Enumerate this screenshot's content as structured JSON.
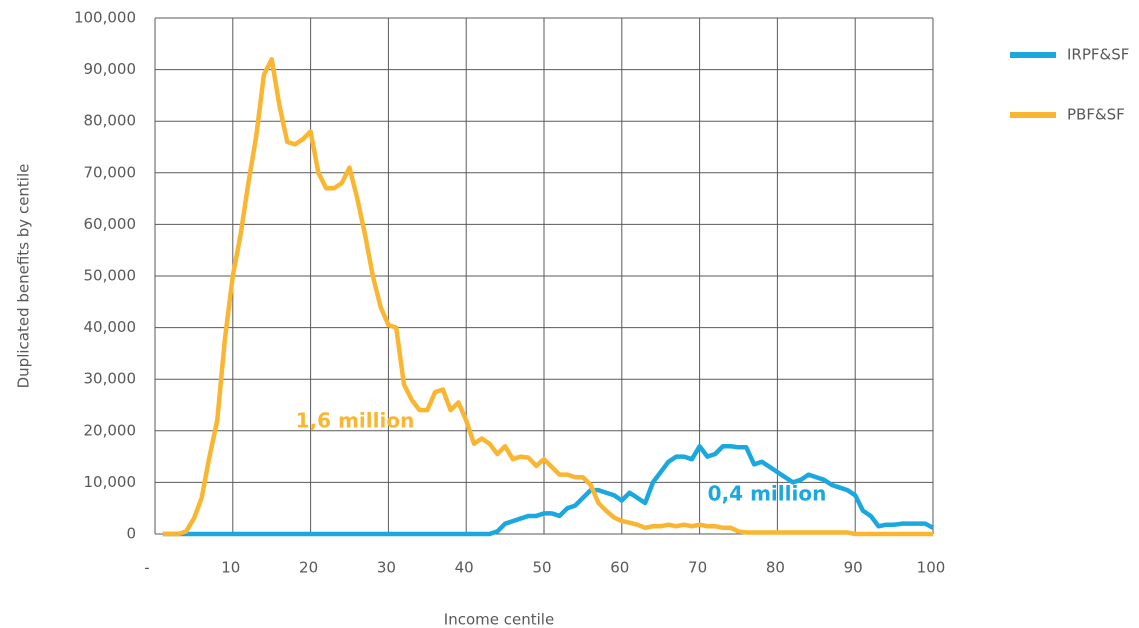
{
  "chart_data": {
    "type": "line",
    "x_label": "Income centile",
    "y_label": "Duplicated benefits by centile",
    "x": [
      1,
      2,
      3,
      4,
      5,
      6,
      7,
      8,
      9,
      10,
      11,
      12,
      13,
      14,
      15,
      16,
      17,
      18,
      19,
      20,
      21,
      22,
      23,
      24,
      25,
      26,
      27,
      28,
      29,
      30,
      31,
      32,
      33,
      34,
      35,
      36,
      37,
      38,
      39,
      40,
      41,
      42,
      43,
      44,
      45,
      46,
      47,
      48,
      49,
      50,
      51,
      52,
      53,
      54,
      55,
      56,
      57,
      58,
      59,
      60,
      61,
      62,
      63,
      64,
      65,
      66,
      67,
      68,
      69,
      70,
      71,
      72,
      73,
      74,
      75,
      76,
      77,
      78,
      79,
      80,
      81,
      82,
      83,
      84,
      85,
      86,
      87,
      88,
      89,
      90,
      91,
      92,
      93,
      94,
      95,
      96,
      97,
      98,
      99,
      100
    ],
    "series": [
      {
        "name": "IRPF&SF",
        "color": "#1ba8e0",
        "values": [
          0,
          0,
          0,
          0,
          0,
          0,
          0,
          0,
          0,
          0,
          0,
          0,
          0,
          0,
          0,
          0,
          0,
          0,
          0,
          0,
          0,
          0,
          0,
          0,
          0,
          0,
          0,
          0,
          0,
          0,
          0,
          0,
          0,
          0,
          0,
          0,
          0,
          0,
          0,
          0,
          0,
          0,
          0,
          500,
          2000,
          2500,
          3000,
          3500,
          3500,
          4000,
          4000,
          3500,
          5000,
          5500,
          7000,
          8500,
          8500,
          8000,
          7500,
          6500,
          8000,
          7000,
          6000,
          10000,
          12000,
          14000,
          15000,
          15000,
          14500,
          17000,
          15000,
          15500,
          17000,
          17000,
          16800,
          16800,
          13500,
          14000,
          13000,
          12000,
          11000,
          10000,
          10500,
          11500,
          11000,
          10500,
          9500,
          9000,
          8500,
          7500,
          4500,
          3500,
          1500,
          1800,
          1800,
          2000,
          2000,
          2000,
          2000,
          1200
        ]
      },
      {
        "name": "PBF&SF",
        "color": "#fbb631",
        "values": [
          0,
          0,
          0,
          500,
          3000,
          7000,
          15000,
          22000,
          38000,
          50000,
          58000,
          68000,
          77000,
          89000,
          92000,
          83000,
          76000,
          75500,
          76500,
          78000,
          70000,
          67000,
          67000,
          68000,
          71000,
          65000,
          58000,
          50000,
          44000,
          40500,
          40000,
          29000,
          26000,
          24000,
          24000,
          27500,
          28000,
          24000,
          25500,
          22000,
          17500,
          18500,
          17500,
          15500,
          17000,
          14500,
          15000,
          14800,
          13200,
          14500,
          13000,
          11500,
          11500,
          11000,
          11000,
          9500,
          6000,
          4500,
          3200,
          2500,
          2200,
          1800,
          1200,
          1500,
          1500,
          1800,
          1500,
          1800,
          1500,
          1800,
          1500,
          1500,
          1200,
          1200,
          500,
          300,
          300,
          300,
          300,
          300,
          300,
          300,
          300,
          300,
          300,
          300,
          300,
          300,
          300,
          0,
          0,
          0,
          0,
          0,
          0,
          0,
          0,
          0,
          0,
          0
        ]
      }
    ],
    "annotations": [
      {
        "text": "1,6 million",
        "color": "#fbb631"
      },
      {
        "text": "0,4 million",
        "color": "#1ba8e0"
      }
    ],
    "xlim": [
      0,
      100
    ],
    "xticks": [
      {
        "value": 0,
        "label": "-"
      },
      10,
      20,
      30,
      40,
      50,
      60,
      70,
      80,
      90,
      100
    ],
    "ylim": [
      0,
      100000
    ],
    "yticks": [
      0,
      {
        "value": 10000,
        "label": "10,000"
      },
      {
        "value": 20000,
        "label": "20,000"
      },
      {
        "value": 30000,
        "label": "30,000"
      },
      {
        "value": 40000,
        "label": "40,000"
      },
      {
        "value": 50000,
        "label": "50,000"
      },
      {
        "value": 60000,
        "label": "60,000"
      },
      {
        "value": 70000,
        "label": "70,000"
      },
      {
        "value": 80000,
        "label": "80,000"
      },
      {
        "value": 90000,
        "label": "90,000"
      },
      {
        "value": 100000,
        "label": "100,000"
      }
    ],
    "grid": true,
    "legend": "right"
  }
}
